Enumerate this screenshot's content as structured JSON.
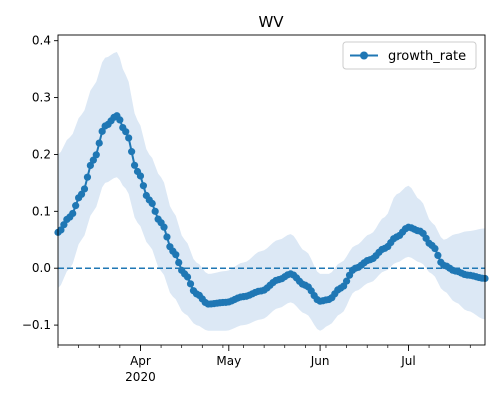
{
  "chart_data": {
    "type": "line",
    "title": "WV",
    "xlabel": "",
    "ylabel": "",
    "legend": {
      "position": "top-right",
      "entries": [
        "growth_rate"
      ]
    },
    "x_range": [
      "2020-03-04",
      "2020-07-27"
    ],
    "ylim": [
      -0.135,
      0.41
    ],
    "grid": false,
    "y_ticks": [
      -0.1,
      0.0,
      0.1,
      0.2,
      0.3,
      0.4
    ],
    "y_tick_labels": [
      "−0.1",
      "0.0",
      "0.1",
      "0.2",
      "0.3",
      "0.4"
    ],
    "x_major_ticks": [
      {
        "date": "2020-04-01",
        "label": "Apr",
        "sublabel": "2020"
      },
      {
        "date": "2020-05-01",
        "label": "May",
        "sublabel": ""
      },
      {
        "date": "2020-06-01",
        "label": "Jun",
        "sublabel": ""
      },
      {
        "date": "2020-07-01",
        "label": "Jul",
        "sublabel": ""
      }
    ],
    "reference_line": {
      "y": 0.0,
      "style": "dashed",
      "color": "#1f77b4"
    },
    "colors": {
      "series": "#1f77b4",
      "band": "#dce8f5"
    },
    "series": [
      {
        "name": "growth_rate",
        "marker": "circle",
        "points": [
          {
            "date": "2020-03-04",
            "y": 0.063,
            "lo": -0.035,
            "hi": 0.2
          },
          {
            "date": "2020-03-08",
            "y": 0.09,
            "lo": 0.0,
            "hi": 0.23
          },
          {
            "date": "2020-03-12",
            "y": 0.13,
            "lo": 0.05,
            "hi": 0.27
          },
          {
            "date": "2020-03-16",
            "y": 0.19,
            "lo": 0.1,
            "hi": 0.32
          },
          {
            "date": "2020-03-20",
            "y": 0.25,
            "lo": 0.15,
            "hi": 0.37
          },
          {
            "date": "2020-03-24",
            "y": 0.268,
            "lo": 0.16,
            "hi": 0.38
          },
          {
            "date": "2020-03-27",
            "y": 0.24,
            "lo": 0.14,
            "hi": 0.34
          },
          {
            "date": "2020-03-31",
            "y": 0.17,
            "lo": 0.08,
            "hi": 0.26
          },
          {
            "date": "2020-04-04",
            "y": 0.12,
            "lo": 0.04,
            "hi": 0.2
          },
          {
            "date": "2020-04-08",
            "y": 0.08,
            "lo": -0.005,
            "hi": 0.16
          },
          {
            "date": "2020-04-12",
            "y": 0.03,
            "lo": -0.05,
            "hi": 0.1
          },
          {
            "date": "2020-04-16",
            "y": -0.01,
            "lo": -0.08,
            "hi": 0.05
          },
          {
            "date": "2020-04-20",
            "y": -0.045,
            "lo": -0.1,
            "hi": 0.01
          },
          {
            "date": "2020-04-24",
            "y": -0.063,
            "lo": -0.11,
            "hi": -0.01
          },
          {
            "date": "2020-04-30",
            "y": -0.06,
            "lo": -0.11,
            "hi": -0.005
          },
          {
            "date": "2020-05-06",
            "y": -0.05,
            "lo": -0.1,
            "hi": 0.01
          },
          {
            "date": "2020-05-12",
            "y": -0.04,
            "lo": -0.09,
            "hi": 0.03
          },
          {
            "date": "2020-05-18",
            "y": -0.02,
            "lo": -0.07,
            "hi": 0.05
          },
          {
            "date": "2020-05-22",
            "y": -0.01,
            "lo": -0.06,
            "hi": 0.06
          },
          {
            "date": "2020-05-27",
            "y": -0.03,
            "lo": -0.08,
            "hi": 0.03
          },
          {
            "date": "2020-06-01",
            "y": -0.058,
            "lo": -0.11,
            "hi": -0.01
          },
          {
            "date": "2020-06-04",
            "y": -0.055,
            "lo": -0.1,
            "hi": -0.01
          },
          {
            "date": "2020-06-08",
            "y": -0.035,
            "lo": -0.08,
            "hi": 0.01
          },
          {
            "date": "2020-06-13",
            "y": 0.0,
            "lo": -0.04,
            "hi": 0.04
          },
          {
            "date": "2020-06-18",
            "y": 0.015,
            "lo": -0.025,
            "hi": 0.06
          },
          {
            "date": "2020-06-23",
            "y": 0.035,
            "lo": -0.005,
            "hi": 0.09
          },
          {
            "date": "2020-06-27",
            "y": 0.055,
            "lo": 0.01,
            "hi": 0.13
          },
          {
            "date": "2020-07-01",
            "y": 0.072,
            "lo": 0.02,
            "hi": 0.145
          },
          {
            "date": "2020-07-05",
            "y": 0.065,
            "lo": 0.01,
            "hi": 0.12
          },
          {
            "date": "2020-07-09",
            "y": 0.04,
            "lo": -0.01,
            "hi": 0.08
          },
          {
            "date": "2020-07-13",
            "y": 0.005,
            "lo": -0.04,
            "hi": 0.05
          },
          {
            "date": "2020-07-17",
            "y": -0.005,
            "lo": -0.06,
            "hi": 0.06
          },
          {
            "date": "2020-07-21",
            "y": -0.012,
            "lo": -0.075,
            "hi": 0.065
          },
          {
            "date": "2020-07-27",
            "y": -0.018,
            "lo": -0.09,
            "hi": 0.07
          }
        ]
      }
    ]
  }
}
